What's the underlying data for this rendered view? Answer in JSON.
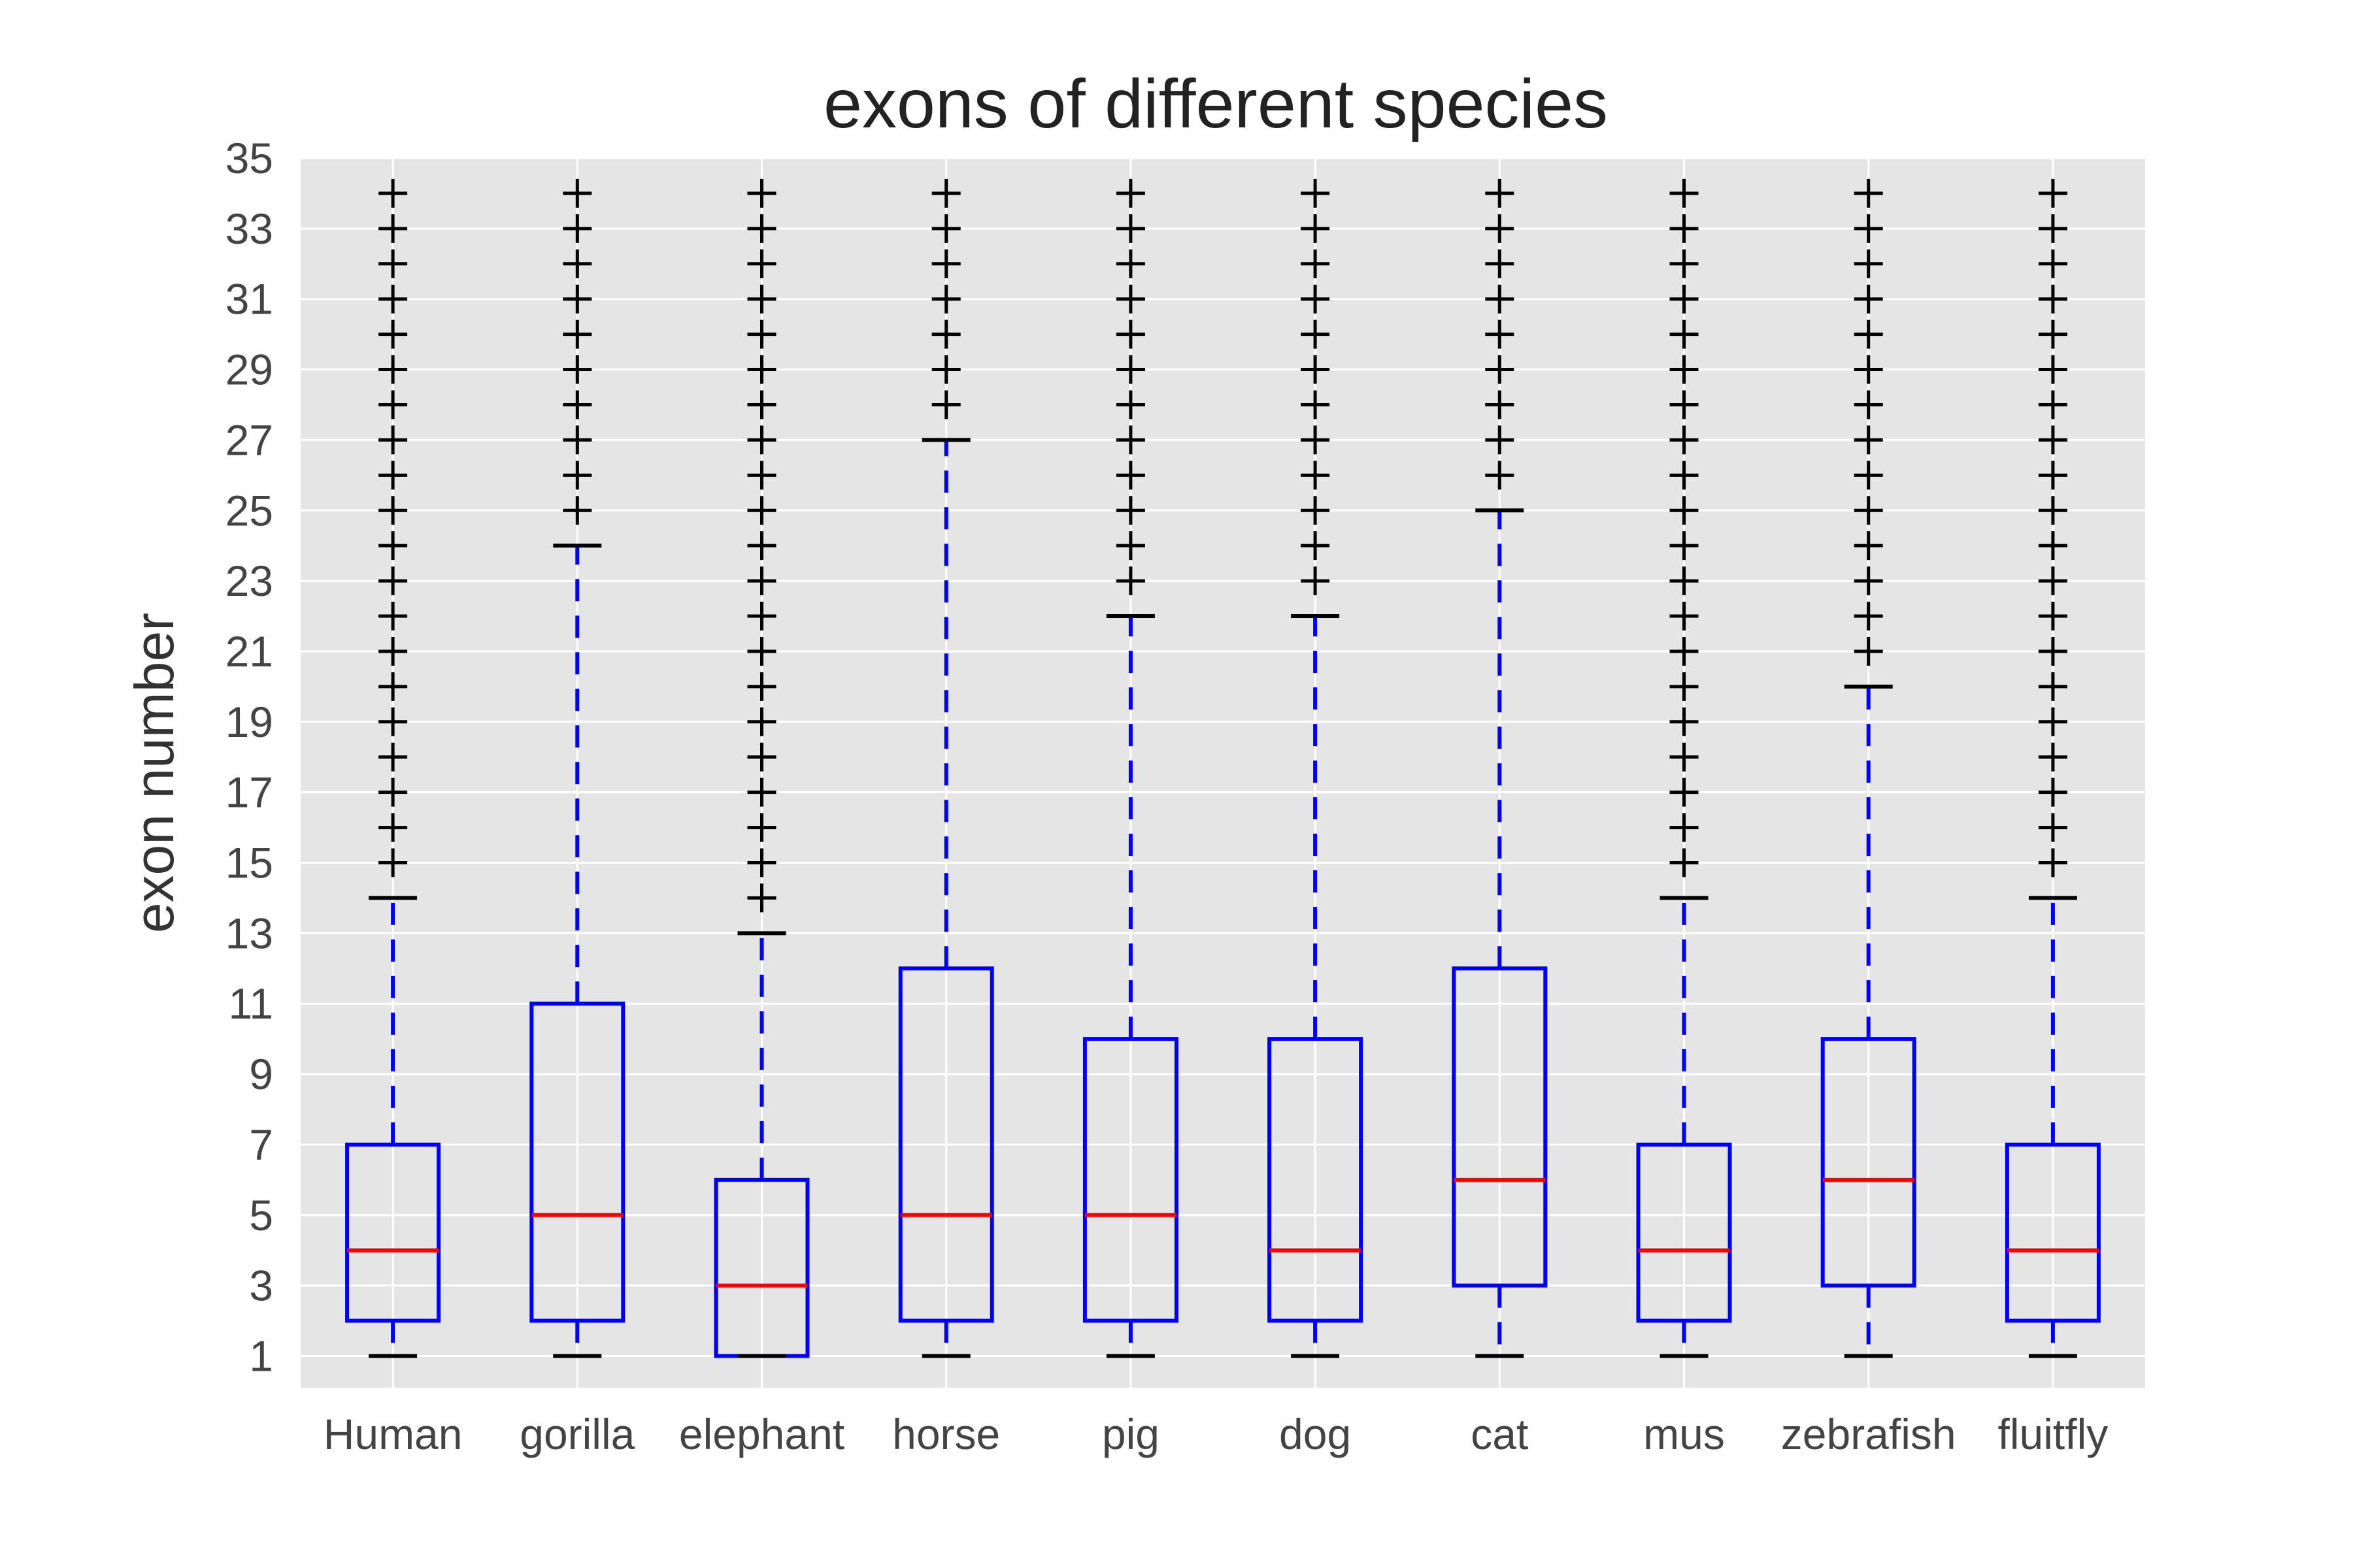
{
  "chart_data": {
    "type": "box",
    "title": "exons of different species",
    "xlabel": "",
    "ylabel": "exon number",
    "ylim": [
      0.1,
      35
    ],
    "yticks": [
      "1",
      "3",
      "5",
      "7",
      "9",
      "11",
      "13",
      "15",
      "17",
      "19",
      "21",
      "23",
      "25",
      "27",
      "29",
      "31",
      "33",
      "35"
    ],
    "grid": true,
    "categories": [
      "Human",
      "gorilla",
      "elephant",
      "horse",
      "pig",
      "dog",
      "cat",
      "mus",
      "zebrafish",
      "fluitfly"
    ],
    "boxes": [
      {
        "min": 1,
        "q1": 2,
        "median": 4,
        "q3": 7,
        "max": 14,
        "fliers_from": 15
      },
      {
        "min": 1,
        "q1": 2,
        "median": 5,
        "q3": 11,
        "max": 24,
        "fliers_from": 25
      },
      {
        "min": 1,
        "q1": 1,
        "median": 3,
        "q3": 6,
        "max": 13,
        "fliers_from": 14
      },
      {
        "min": 1,
        "q1": 2,
        "median": 5,
        "q3": 12,
        "max": 27,
        "fliers_from": 28
      },
      {
        "min": 1,
        "q1": 2,
        "median": 5,
        "q3": 10,
        "max": 22,
        "fliers_from": 23
      },
      {
        "min": 1,
        "q1": 2,
        "median": 4,
        "q3": 10,
        "max": 22,
        "fliers_from": 23
      },
      {
        "min": 1,
        "q1": 3,
        "median": 6,
        "q3": 12,
        "max": 25,
        "fliers_from": 26
      },
      {
        "min": 1,
        "q1": 2,
        "median": 4,
        "q3": 7,
        "max": 14,
        "fliers_from": 15
      },
      {
        "min": 1,
        "q1": 3,
        "median": 6,
        "q3": 10,
        "max": 20,
        "fliers_from": 21
      },
      {
        "min": 1,
        "q1": 2,
        "median": 4,
        "q3": 7,
        "max": 14,
        "fliers_from": 15
      }
    ],
    "flier_max": 34,
    "colors": {
      "background": "#e5e5e5",
      "grid": "#ffffff",
      "box": "#0000ff",
      "median": "#ff0000",
      "whisker": "#0000ff",
      "cap": "#000000",
      "flier": "#000000"
    }
  }
}
